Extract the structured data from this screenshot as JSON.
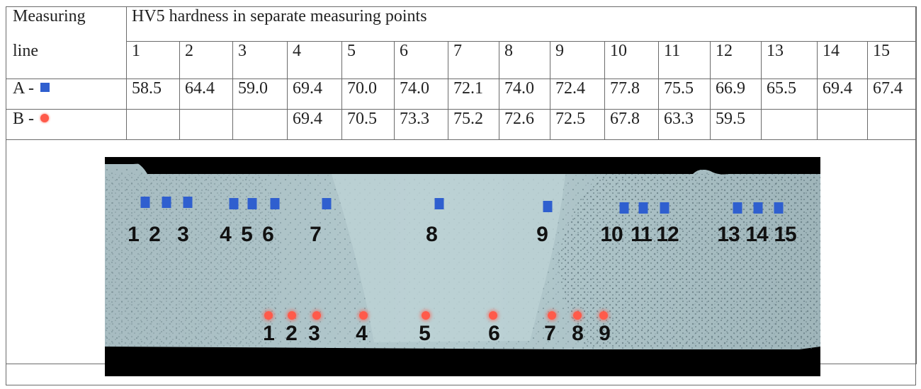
{
  "table": {
    "corner_top": "Measuring",
    "corner_bottom": "line",
    "header": "HV5 hardness in separate measuring points",
    "points": [
      "1",
      "2",
      "3",
      "4",
      "5",
      "6",
      "7",
      "8",
      "9",
      "10",
      "11",
      "12",
      "13",
      "14",
      "15"
    ],
    "rows": [
      {
        "label": "A -",
        "marker": "blue-square",
        "values": [
          "58.5",
          "64.4",
          "59.0",
          "69.4",
          "70.0",
          "74.0",
          "72.1",
          "74.0",
          "72.4",
          "77.8",
          "75.5",
          "66.9",
          "65.5",
          "69.4",
          "67.4"
        ]
      },
      {
        "label": "B -",
        "marker": "red-dot",
        "values": [
          "",
          "",
          "",
          "69.4",
          "70.5",
          "73.3",
          "75.2",
          "72.6",
          "72.5",
          "67.8",
          "63.3",
          "59.5",
          "",
          "",
          ""
        ]
      }
    ]
  },
  "micrograph": {
    "line_a_labels": [
      "1",
      "2",
      "3",
      "4",
      "5",
      "6",
      "7",
      "8",
      "9",
      "10",
      "11",
      "12",
      "13",
      "14",
      "15"
    ],
    "line_b_labels": [
      "1",
      "2",
      "3",
      "4",
      "5",
      "6",
      "7",
      "8",
      "9"
    ]
  },
  "colors": {
    "marker_a": "#2f5fcf",
    "marker_b": "#ff5a4a",
    "micro_bg": "#a9c4c9"
  }
}
